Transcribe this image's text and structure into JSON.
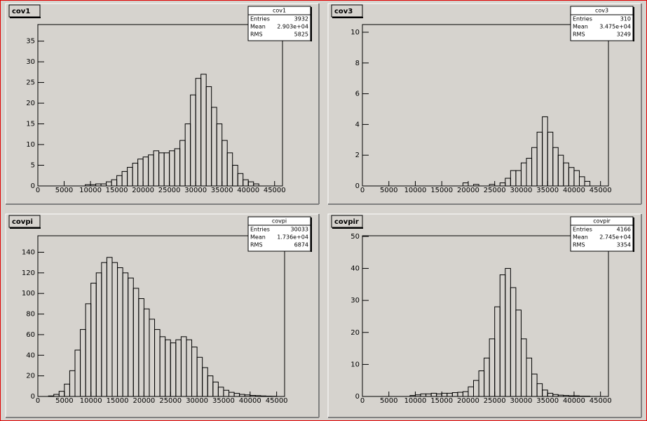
{
  "chart_data": [
    {
      "type": "histogram",
      "title": "cov1",
      "stats": {
        "name": "cov1",
        "rows": [
          {
            "label": "Entries",
            "value": 3932
          },
          {
            "label": "Mean",
            "value": 29030,
            "value_label": "2.903e+04"
          },
          {
            "label": "RMS",
            "value": 5825
          }
        ]
      },
      "bins": [
        0,
        1000,
        2000,
        3000,
        4000,
        5000,
        6000,
        7000,
        8000,
        9000,
        10000,
        11000,
        12000,
        13000,
        14000,
        15000,
        16000,
        17000,
        18000,
        19000,
        20000,
        21000,
        22000,
        23000,
        24000,
        25000,
        26000,
        27000,
        28000,
        29000,
        30000,
        31000,
        32000,
        33000,
        34000,
        35000,
        36000,
        37000,
        38000,
        39000,
        40000,
        41000,
        42000,
        43000,
        44000,
        45000,
        46000
      ],
      "values": [
        0,
        0,
        0,
        0,
        0,
        0,
        0,
        0,
        0,
        0.3,
        0.3,
        0.5,
        0.5,
        1,
        1.5,
        2.5,
        3.5,
        4.5,
        5.5,
        6.5,
        7,
        7.5,
        8.5,
        8,
        8,
        8.5,
        9,
        11,
        15,
        22,
        26,
        27,
        24,
        19,
        15,
        11,
        8,
        5,
        3,
        1.5,
        1,
        0.5,
        0,
        0,
        0,
        0
      ],
      "xlim": [
        0,
        46500
      ],
      "ylim": [
        0,
        39
      ],
      "xticks": [
        0,
        5000,
        10000,
        15000,
        20000,
        25000,
        30000,
        35000,
        40000,
        45000
      ],
      "yticks": [
        0,
        5,
        10,
        15,
        20,
        25,
        30,
        35
      ],
      "color": "#000000"
    },
    {
      "type": "histogram",
      "title": "cov3",
      "stats": {
        "name": "cov3",
        "rows": [
          {
            "label": "Entries",
            "value": 310
          },
          {
            "label": "Mean",
            "value": 34750,
            "value_label": "3.475e+04"
          },
          {
            "label": "RMS",
            "value": 3249
          }
        ]
      },
      "bins": [
        0,
        1000,
        2000,
        3000,
        4000,
        5000,
        6000,
        7000,
        8000,
        9000,
        10000,
        11000,
        12000,
        13000,
        14000,
        15000,
        16000,
        17000,
        18000,
        19000,
        20000,
        21000,
        22000,
        23000,
        24000,
        25000,
        26000,
        27000,
        28000,
        29000,
        30000,
        31000,
        32000,
        33000,
        34000,
        35000,
        36000,
        37000,
        38000,
        39000,
        40000,
        41000,
        42000,
        43000,
        44000,
        45000,
        46000
      ],
      "values": [
        0,
        0,
        0,
        0,
        0,
        0,
        0,
        0,
        0,
        0,
        0,
        0,
        0,
        0,
        0,
        0,
        0,
        0,
        0,
        0.2,
        0,
        0.1,
        0,
        0,
        0.1,
        0,
        0.2,
        0.5,
        1,
        1,
        1.5,
        1.8,
        2.5,
        3.5,
        4.5,
        3.5,
        2.5,
        2,
        1.5,
        1.2,
        1,
        0.6,
        0.3,
        0,
        0,
        0
      ],
      "xlim": [
        0,
        46500
      ],
      "ylim": [
        0,
        10.5
      ],
      "xticks": [
        0,
        5000,
        10000,
        15000,
        20000,
        25000,
        30000,
        35000,
        40000,
        45000
      ],
      "yticks": [
        0,
        2,
        4,
        6,
        8,
        10
      ],
      "color": "#000000"
    },
    {
      "type": "histogram",
      "title": "covpi",
      "stats": {
        "name": "covpi",
        "rows": [
          {
            "label": "Entries",
            "value": 30033
          },
          {
            "label": "Mean",
            "value": 17360,
            "value_label": "1.736e+04"
          },
          {
            "label": "RMS",
            "value": 6874
          }
        ]
      },
      "bins": [
        0,
        1000,
        2000,
        3000,
        4000,
        5000,
        6000,
        7000,
        8000,
        9000,
        10000,
        11000,
        12000,
        13000,
        14000,
        15000,
        16000,
        17000,
        18000,
        19000,
        20000,
        21000,
        22000,
        23000,
        24000,
        25000,
        26000,
        27000,
        28000,
        29000,
        30000,
        31000,
        32000,
        33000,
        34000,
        35000,
        36000,
        37000,
        38000,
        39000,
        40000,
        41000,
        42000,
        43000,
        44000,
        45000,
        46000
      ],
      "values": [
        0,
        0,
        0.5,
        2,
        5,
        12,
        25,
        45,
        65,
        90,
        110,
        120,
        130,
        135,
        130,
        125,
        120,
        115,
        105,
        95,
        85,
        75,
        65,
        58,
        55,
        52,
        55,
        58,
        55,
        48,
        38,
        28,
        20,
        14,
        9,
        6,
        4,
        3,
        2,
        1.5,
        1,
        0.8,
        0.5,
        0.3,
        0.2,
        0
      ],
      "xlim": [
        0,
        46500
      ],
      "ylim": [
        0,
        156
      ],
      "xticks": [
        0,
        5000,
        10000,
        15000,
        20000,
        25000,
        30000,
        35000,
        40000,
        45000
      ],
      "yticks": [
        0,
        20,
        40,
        60,
        80,
        100,
        120,
        140
      ],
      "color": "#000000"
    },
    {
      "type": "histogram",
      "title": "covpir",
      "stats": {
        "name": "covpir",
        "rows": [
          {
            "label": "Entries",
            "value": 4166
          },
          {
            "label": "Mean",
            "value": 27450,
            "value_label": "2.745e+04"
          },
          {
            "label": "RMS",
            "value": 3354
          }
        ]
      },
      "bins": [
        0,
        1000,
        2000,
        3000,
        4000,
        5000,
        6000,
        7000,
        8000,
        9000,
        10000,
        11000,
        12000,
        13000,
        14000,
        15000,
        16000,
        17000,
        18000,
        19000,
        20000,
        21000,
        22000,
        23000,
        24000,
        25000,
        26000,
        27000,
        28000,
        29000,
        30000,
        31000,
        32000,
        33000,
        34000,
        35000,
        36000,
        37000,
        38000,
        39000,
        40000,
        41000,
        42000,
        43000,
        44000,
        45000,
        46000
      ],
      "values": [
        0,
        0,
        0,
        0,
        0,
        0,
        0,
        0,
        0,
        0.3,
        0.5,
        0.8,
        0.8,
        1,
        0.8,
        1,
        1,
        1.2,
        1.3,
        1.5,
        3,
        5,
        8,
        12,
        18,
        28,
        38,
        40,
        34,
        27,
        18,
        12,
        7,
        4,
        2,
        1,
        0.6,
        0.4,
        0.3,
        0.2,
        0.2,
        0.1,
        0.1,
        0,
        0,
        0
      ],
      "xlim": [
        0,
        46500
      ],
      "ylim": [
        0,
        50.2
      ],
      "xticks": [
        0,
        5000,
        10000,
        15000,
        20000,
        25000,
        30000,
        35000,
        40000,
        45000
      ],
      "yticks": [
        0,
        10,
        20,
        30,
        40,
        50
      ],
      "color": "#000000"
    }
  ]
}
